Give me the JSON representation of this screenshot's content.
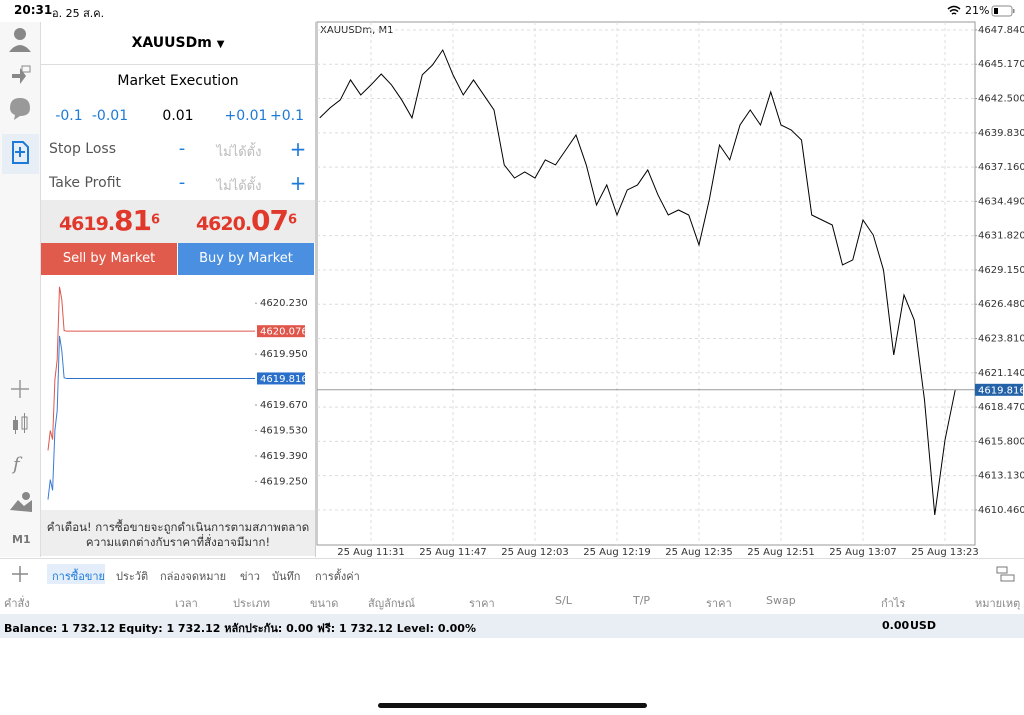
{
  "status_bar": {
    "time": "20:31",
    "date": "อ. 25 ส.ค.",
    "battery": "21%"
  },
  "sidebar": {
    "timeframe": "M1"
  },
  "order_panel": {
    "symbol": "XAUUSDm",
    "execution": "Market Execution",
    "volume_steps": [
      "-0.1",
      "-0.01",
      "+0.01",
      "+0.1"
    ],
    "volume": "0.01",
    "stop_loss": {
      "label": "Stop Loss",
      "minus": "-",
      "value": "ไม่ได้ตั้ง",
      "plus": "+"
    },
    "take_profit": {
      "label": "Take Profit",
      "minus": "-",
      "value": "ไม่ได้ตั้ง",
      "plus": "+"
    },
    "bid": {
      "main": "4619.",
      "big": "81",
      "small": "6"
    },
    "ask": {
      "main": "4620.",
      "big": "07",
      "small": "6"
    },
    "sell_button": "Sell by Market",
    "buy_button": "Buy by Market",
    "warning": [
      "คำเตือน! การซื้อขายจะถูกดำเนินการตามสภาพตลาด",
      "ความแตกต่างกับราคาที่สั่งอาจมีมาก!"
    ]
  },
  "chart_data": [
    {
      "type": "line",
      "title": "XAUUSDm, M1",
      "grid": true,
      "categories": [
        null,
        null,
        null,
        null,
        null,
        "25 Aug 11:31",
        null,
        null,
        null,
        null,
        null,
        null,
        null,
        "25 Aug 11:47",
        null,
        null,
        null,
        null,
        null,
        null,
        null,
        "25 Aug 12:03",
        null,
        null,
        null,
        null,
        null,
        null,
        null,
        "25 Aug 12:19",
        null,
        null,
        null,
        null,
        null,
        null,
        null,
        "25 Aug 12:35",
        null,
        null,
        null,
        null,
        null,
        null,
        null,
        "25 Aug 12:51",
        null,
        null,
        null,
        null,
        null,
        null,
        null,
        "25 Aug 13:07",
        null,
        null,
        null,
        null,
        null,
        null,
        null,
        "25 Aug 13:23",
        null
      ],
      "series": [
        {
          "color": "#000000",
          "values": [
            4640.99,
            4641.77,
            4642.39,
            4643.95,
            4642.78,
            4643.56,
            4644.41,
            4643.56,
            4642.39,
            4640.99,
            4644.34,
            4645.11,
            4646.28,
            4644.34,
            4642.78,
            4643.95,
            4642.78,
            4641.61,
            4637.33,
            4636.31,
            4636.78,
            4636.31,
            4637.72,
            4637.33,
            4638.49,
            4639.66,
            4637.33,
            4634.21,
            4635.77,
            4633.43,
            4635.38,
            4635.77,
            4636.94,
            4634.99,
            4633.43,
            4633.82,
            4633.43,
            4631.1,
            4634.6,
            4638.88,
            4637.72,
            4640.44,
            4641.61,
            4640.44,
            4643.01,
            4640.44,
            4640.05,
            4639.27,
            4633.43,
            4633.04,
            4632.65,
            4629.54,
            4629.93,
            4633.04,
            4631.87,
            4629.15,
            4622.53,
            4627.2,
            4625.25,
            4619.02,
            4610.07,
            4615.91,
            4619.816
          ]
        }
      ],
      "ylim": [
        4607.73,
        4648.46
      ],
      "yticks": [
        {
          "value": 4647.84,
          "label": "4647.840"
        },
        {
          "value": 4645.17,
          "label": "4645.170"
        },
        {
          "value": 4642.5,
          "label": "4642.500"
        },
        {
          "value": 4639.83,
          "label": "4639.830"
        },
        {
          "value": 4637.16,
          "label": "4637.160"
        },
        {
          "value": 4634.49,
          "label": "4634.490"
        },
        {
          "value": 4631.82,
          "label": "4631.820"
        },
        {
          "value": 4629.15,
          "label": "4629.150"
        },
        {
          "value": 4626.48,
          "label": "4626.480"
        },
        {
          "value": 4623.81,
          "label": "4623.810"
        },
        {
          "value": 4621.14,
          "label": "4621.140"
        },
        {
          "value": 4618.47,
          "label": "4618.470"
        },
        {
          "value": 4615.8,
          "label": "4615.800"
        },
        {
          "value": 4613.13,
          "label": "4613.130"
        },
        {
          "value": 4610.46,
          "label": "4610.460"
        }
      ],
      "price_lines": [
        {
          "value": 4619.816,
          "color": "#2462a8",
          "line_color": "#9a9a9a"
        }
      ]
    },
    {
      "type": "line",
      "grid": false,
      "series": [
        {
          "color": "#e0564a",
          "values": [
            4619.42,
            4619.53,
            4619.48,
            4619.81,
            4619.92,
            4620.32,
            4620.25,
            4620.08,
            4620.076
          ]
        },
        {
          "color": "#3a7bd5",
          "values": [
            4619.15,
            4619.26,
            4619.2,
            4619.53,
            4619.64,
            4620.05,
            4619.97,
            4619.82,
            4619.816
          ]
        }
      ],
      "ylim": [
        4619.12,
        4620.33
      ],
      "yticks": [
        {
          "value": 4620.23,
          "label": "4620.230"
        },
        {
          "value": 4619.95,
          "label": "4619.950"
        },
        {
          "value": 4619.67,
          "label": "4619.670"
        },
        {
          "value": 4619.53,
          "label": "4619.530"
        },
        {
          "value": 4619.39,
          "label": "4619.390"
        },
        {
          "value": 4619.25,
          "label": "4619.250"
        }
      ],
      "price_lines": [
        {
          "value": 4620.076,
          "color": "#e0564a",
          "line_color": "#e0564a"
        },
        {
          "value": 4619.816,
          "color": "#2a6fc9",
          "line_color": "#2a6fc9"
        }
      ]
    }
  ],
  "tabs": [
    "การซื้อขาย",
    "ประวัติ",
    "กล่องจดหมาย",
    "ข่าว",
    "บันทึก",
    "การตั้งค่า"
  ],
  "table": {
    "columns": [
      "คำสั่ง",
      "เวลา",
      "ประเภท",
      "ขนาด",
      "สัญลักษณ์",
      "ราคา",
      "S/L",
      "T/P",
      "ราคา",
      "Swap",
      "กำไร",
      "หมายเหตุ"
    ]
  },
  "balance": {
    "summary": "Balance: 1 732.12 Equity: 1 732.12 หลักประกัน: 0.00 ฟรี: 1 732.12 Level: 0.00%",
    "profit": "0.00",
    "currency": "USD"
  }
}
